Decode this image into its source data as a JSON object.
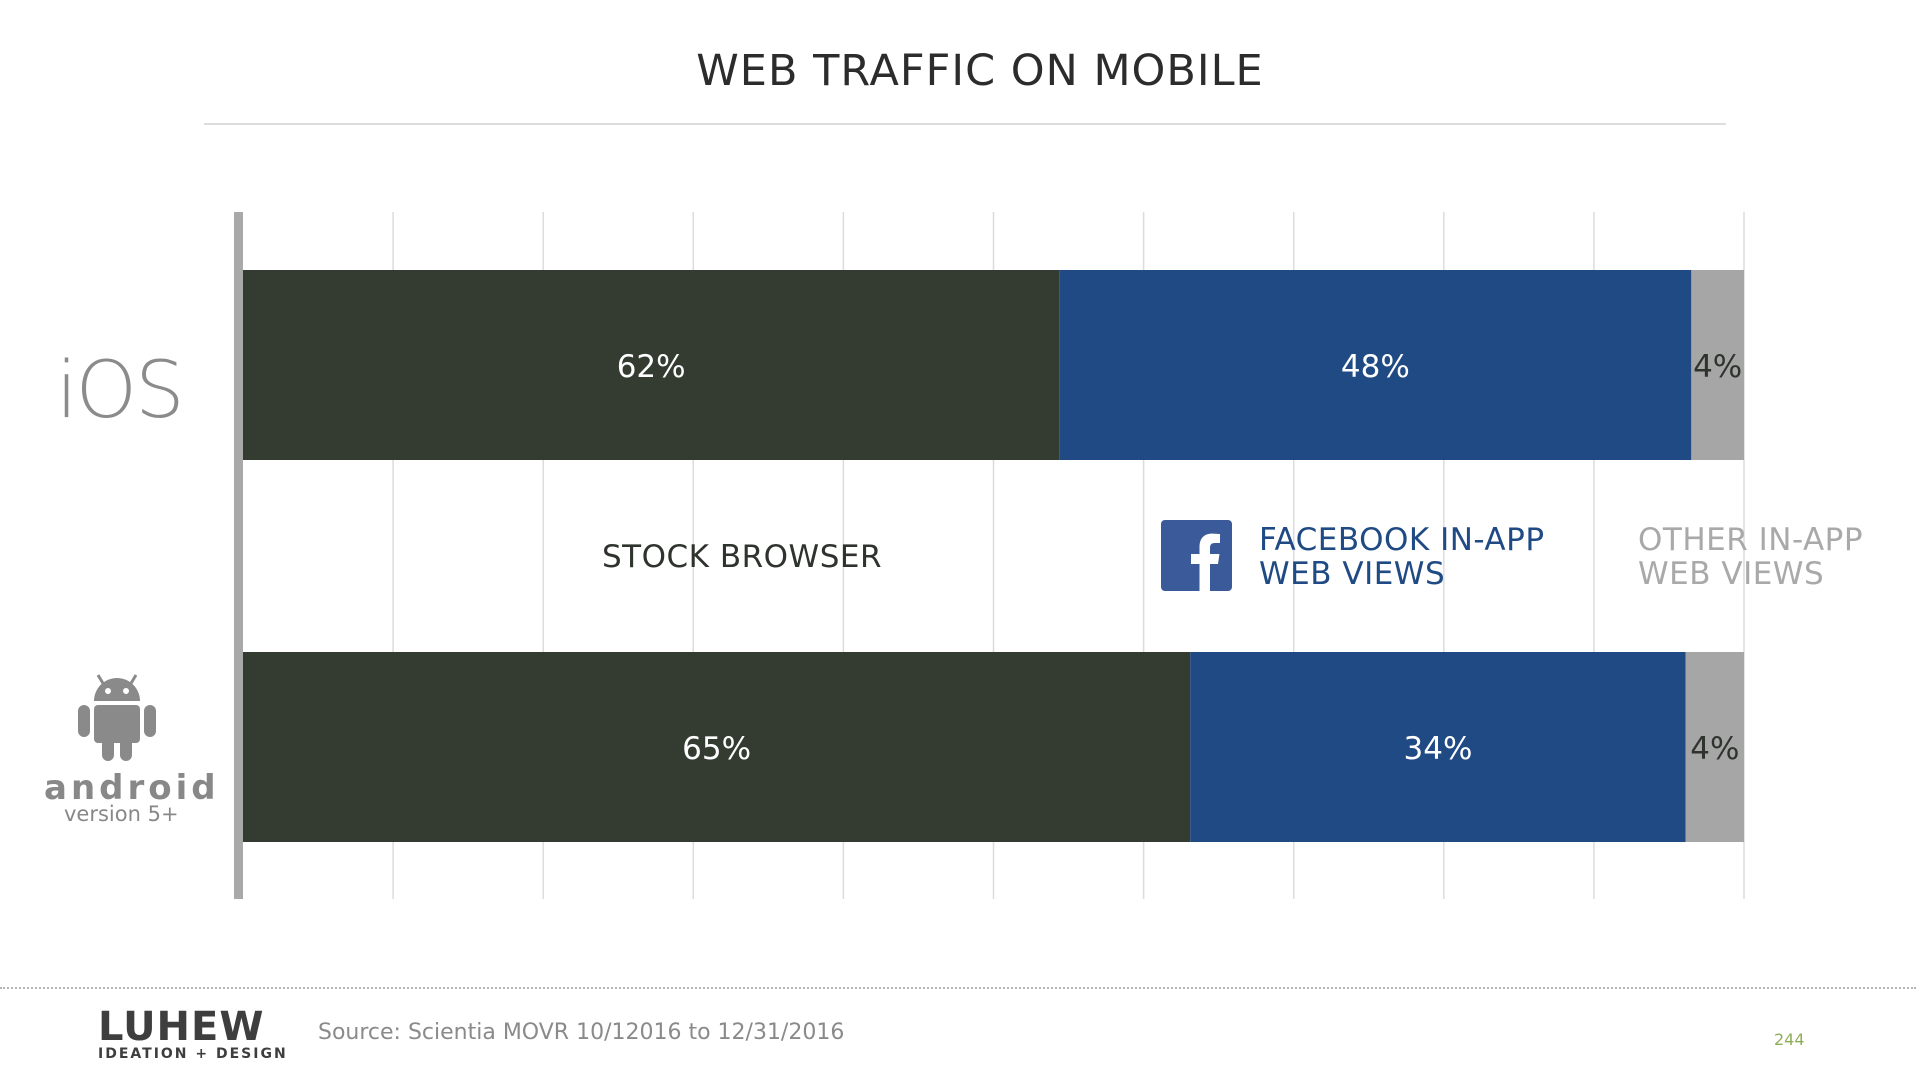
{
  "header": {
    "title": "WEB TRAFFIC ON MOBILE"
  },
  "chart_data": {
    "type": "bar",
    "orientation": "horizontal",
    "stacked": true,
    "categories": [
      "iOS",
      "android version 5+"
    ],
    "series": [
      {
        "name": "STOCK BROWSER",
        "values": [
          62,
          65
        ],
        "labels": [
          "62%",
          "65%"
        ],
        "color": "#343c32"
      },
      {
        "name": "FACEBOOK IN-APP WEB VIEWS",
        "values": [
          48,
          34
        ],
        "labels": [
          "48%",
          "34%"
        ],
        "color": "#1f4a83"
      },
      {
        "name": "OTHER IN-APP WEB VIEWS",
        "values": [
          4,
          4
        ],
        "labels": [
          "4%",
          "4%"
        ],
        "color": "#a6a6a6"
      }
    ],
    "grid": true,
    "legend_position": "between-bars"
  },
  "legend": {
    "stock": "STOCK BROWSER",
    "facebook_line1": "FACEBOOK IN-APP",
    "facebook_line2": "WEB VIEWS",
    "other_line1": "OTHER IN-APP",
    "other_line2": "WEB VIEWS"
  },
  "platforms": {
    "ios": "iOS",
    "android": "android",
    "android_version": "version 5+"
  },
  "footer": {
    "logo_text": "LUHEW",
    "logo_tagline": "IDEATION + DESIGN",
    "source": "Source: Scientia MOVR 10/12016 to 12/31/2016",
    "page_number": "244"
  },
  "colors": {
    "stock": "#343c32",
    "facebook": "#1f4a83",
    "other": "#a6a6a6",
    "logo_accent": "#8fae5a"
  }
}
